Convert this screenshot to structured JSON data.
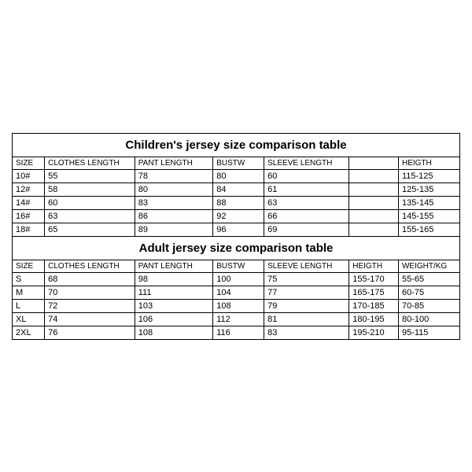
{
  "children": {
    "title": "Children's jersey size comparison table",
    "headers": [
      "SIZE",
      "CLOTHES LENGTH",
      "PANT LENGTH",
      "BUSTW",
      "SLEEVE LENGTH",
      "",
      "HEIGTH"
    ],
    "rows": [
      [
        "10#",
        "55",
        "78",
        "80",
        "60",
        "",
        "115-125"
      ],
      [
        "12#",
        "58",
        "80",
        "84",
        "61",
        "",
        "125-135"
      ],
      [
        "14#",
        "60",
        "83",
        "88",
        "63",
        "",
        "135-145"
      ],
      [
        "16#",
        "63",
        "86",
        "92",
        "66",
        "",
        "145-155"
      ],
      [
        "18#",
        "65",
        "89",
        "96",
        "69",
        "",
        "155-165"
      ]
    ]
  },
  "adult": {
    "title": "Adult jersey size comparison table",
    "headers": [
      "SIZE",
      "CLOTHES LENGTH",
      "PANT LENGTH",
      "BUSTW",
      "SLEEVE LENGTH",
      "HEIGTH",
      "WEIGHT/KG"
    ],
    "rows": [
      [
        "S",
        "68",
        "98",
        "100",
        "75",
        "155-170",
        "55-65"
      ],
      [
        "M",
        "70",
        "111",
        "104",
        "77",
        "165-175",
        "60-75"
      ],
      [
        "L",
        "72",
        "103",
        "108",
        "79",
        "170-185",
        "70-85"
      ],
      [
        "XL",
        "74",
        "106",
        "112",
        "81",
        "180-195",
        "80-100"
      ],
      [
        "2XL",
        "76",
        "108",
        "116",
        "83",
        "195-210",
        "95-115"
      ]
    ]
  }
}
